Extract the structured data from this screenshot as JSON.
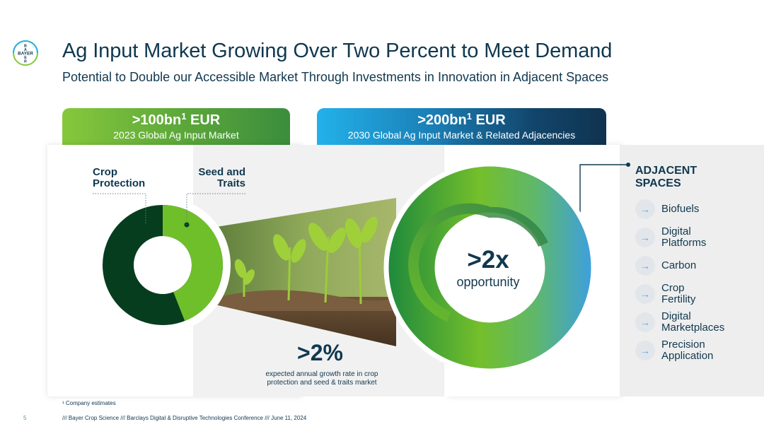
{
  "logo": {
    "top": "B",
    "middle": "BAYER",
    "left_letters": "B",
    "bottom": "R",
    "letters_vertical": "BAYER"
  },
  "title": "Ag Input Market Growing Over Two Percent to Meet Demand",
  "subtitle": "Potential to Double our Accessible Market Through Investments in Innovation in Adjacent Spaces",
  "tabs": {
    "current": {
      "value": ">100bn",
      "sup": "1",
      "unit": " EUR",
      "caption": "2023 Global Ag Input Market"
    },
    "future": {
      "value": ">200bn",
      "sup": "1",
      "unit": " EUR",
      "caption": "2030 Global Ag Input Market & Related Adjacencies"
    }
  },
  "donut": {
    "crop_protection_label": "Crop\nProtection",
    "seed_traits_label": "Seed and\nTraits",
    "colors": {
      "crop_protection": "#063d1e",
      "seed_traits": "#6fbf2a"
    },
    "seed_traits_share": 0.44
  },
  "growth": {
    "value": ">2%",
    "caption": "expected annual growth rate in crop protection and seed & traits market"
  },
  "opportunity": {
    "value": ">2x",
    "label": "opportunity",
    "colors": {
      "start": "#1f8a3c",
      "mid": "#74bf2b",
      "end": "#3ea0dc"
    }
  },
  "adjacent": {
    "title": "ADJACENT\nSPACES",
    "items": [
      {
        "label": "Biofuels"
      },
      {
        "label": "Digital\nPlatforms"
      },
      {
        "label": "Carbon"
      },
      {
        "label": "Crop\nFertility"
      },
      {
        "label": "Digital\nMarketplaces"
      },
      {
        "label": "Precision\nApplication"
      }
    ],
    "arrow_icon": "arrow-right-icon"
  },
  "footer": {
    "note": "¹ Company estimates",
    "page": "5",
    "source": "/// Bayer Crop Science /// Barclays Digital & Disruptive Technologies Conference  /// June 11, 2024"
  }
}
